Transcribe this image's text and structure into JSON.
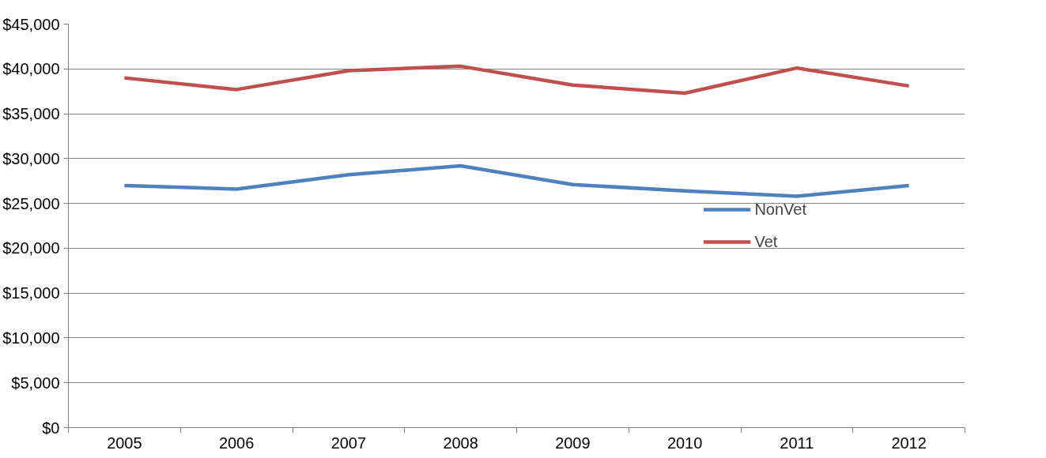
{
  "chart_data": {
    "type": "line",
    "categories": [
      "2005",
      "2006",
      "2007",
      "2008",
      "2009",
      "2010",
      "2011",
      "2012"
    ],
    "series": [
      {
        "name": "NonVet",
        "color": "#4f81bd",
        "values": [
          27000,
          26600,
          28200,
          29200,
          27100,
          26400,
          25800,
          27000
        ]
      },
      {
        "name": "Vet",
        "color": "#c0504d",
        "values": [
          39000,
          37700,
          39800,
          40300,
          38200,
          37300,
          40100,
          38100
        ]
      }
    ],
    "ylim": [
      0,
      45000
    ],
    "yticks": [
      {
        "value": 0,
        "label": "$0"
      },
      {
        "value": 5000,
        "label": "$5,000"
      },
      {
        "value": 10000,
        "label": "$10,000"
      },
      {
        "value": 15000,
        "label": "$15,000"
      },
      {
        "value": 20000,
        "label": "$20,000"
      },
      {
        "value": 25000,
        "label": "$25,000"
      },
      {
        "value": 30000,
        "label": "$30,000"
      },
      {
        "value": 35000,
        "label": "$35,000"
      },
      {
        "value": 40000,
        "label": "$40,000"
      },
      {
        "value": 45000,
        "label": "$45,000"
      }
    ],
    "grid": "y",
    "legend": "right",
    "marker": "none",
    "line_style": "solid"
  }
}
